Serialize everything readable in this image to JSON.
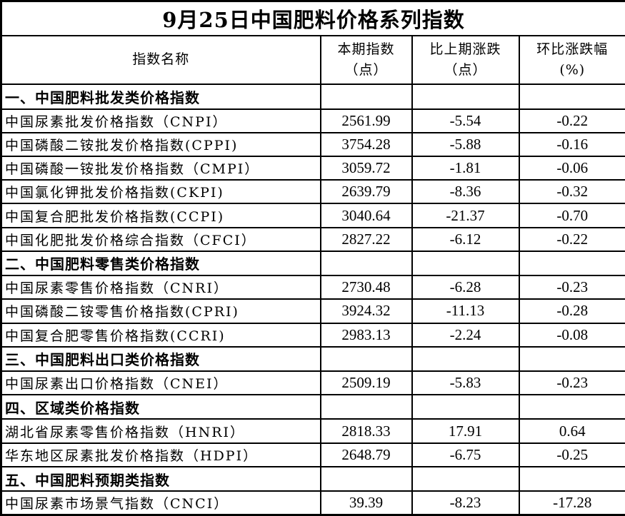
{
  "title": "9月25日中国肥料价格系列指数",
  "columns": [
    {
      "label": "指数名称",
      "sub": ""
    },
    {
      "label": "本期指数",
      "sub": "（点）"
    },
    {
      "label": "比上期涨跌",
      "sub": "（点）"
    },
    {
      "label": "环比涨跌幅",
      "sub": "(%)"
    }
  ],
  "sections": [
    {
      "header": "一、中国肥料批发类价格指数",
      "rows": [
        {
          "name": "中国尿素批发价格指数（CNPI）",
          "current": "2561.99",
          "change": "-5.54",
          "pct": "-0.22"
        },
        {
          "name": "中国磷酸二铵批发价格指数(CPPI)",
          "current": "3754.28",
          "change": "-5.88",
          "pct": "-0.16"
        },
        {
          "name": "中国磷酸一铵批发价格指数（CMPI）",
          "current": "3059.72",
          "change": "-1.81",
          "pct": "-0.06"
        },
        {
          "name": "中国氯化钾批发价格指数(CKPI)",
          "current": "2639.79",
          "change": "-8.36",
          "pct": "-0.32"
        },
        {
          "name": "中国复合肥批发价格指数(CCPI)",
          "current": "3040.64",
          "change": "-21.37",
          "pct": "-0.70"
        },
        {
          "name": "中国化肥批发价格综合指数（CFCI）",
          "current": "2827.22",
          "change": "-6.12",
          "pct": "-0.22"
        }
      ]
    },
    {
      "header": "二、中国肥料零售类价格指数",
      "rows": [
        {
          "name": "中国尿素零售价格指数（CNRI）",
          "current": "2730.48",
          "change": "-6.28",
          "pct": "-0.23"
        },
        {
          "name": "中国磷酸二铵零售价格指数(CPRI)",
          "current": "3924.32",
          "change": "-11.13",
          "pct": "-0.28"
        },
        {
          "name": "中国复合肥零售价格指数(CCRI)",
          "current": "2983.13",
          "change": "-2.24",
          "pct": "-0.08"
        }
      ]
    },
    {
      "header": "三、中国肥料出口类价格指数",
      "rows": [
        {
          "name": "中国尿素出口价格指数（CNEI）",
          "current": "2509.19",
          "change": "-5.83",
          "pct": "-0.23"
        }
      ]
    },
    {
      "header": "四、区域类价格指数",
      "rows": [
        {
          "name": "湖北省尿素零售价格指数（HNRI）",
          "current": "2818.33",
          "change": "17.91",
          "pct": "0.64"
        },
        {
          "name": "华东地区尿素批发价格指数（HDPI）",
          "current": "2648.79",
          "change": "-6.75",
          "pct": "-0.25"
        }
      ]
    },
    {
      "header": "五、中国肥料预期类指数",
      "rows": [
        {
          "name": "中国尿素市场景气指数（CNCI）",
          "current": "39.39",
          "change": "-8.23",
          "pct": "-17.28"
        }
      ]
    }
  ],
  "colors": {
    "border": "#000000",
    "text": "#000000",
    "background": "#ffffff"
  }
}
